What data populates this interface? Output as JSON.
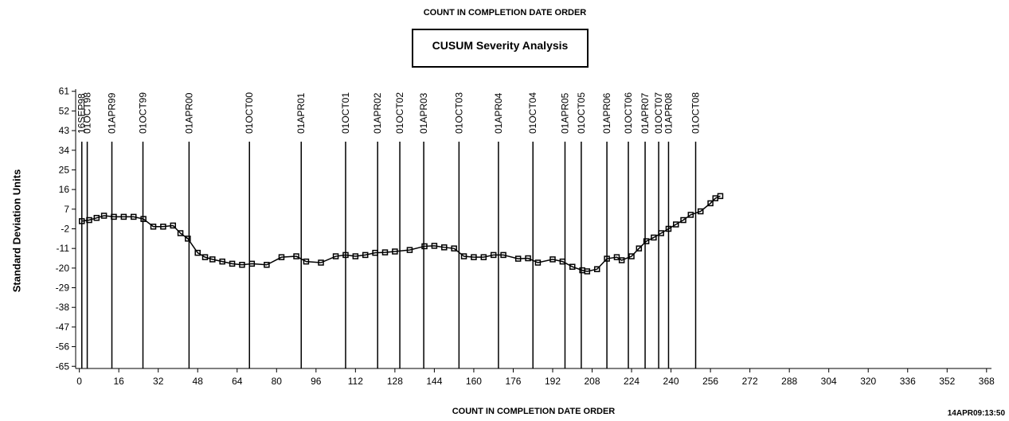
{
  "chart_data": {
    "type": "line",
    "title": "COUNT IN COMPLETION DATE ORDER",
    "subtitle": "CUSUM Severity Analysis",
    "x_label": "COUNT IN COMPLETION DATE ORDER",
    "y_label": "Standard Deviation Units",
    "footnote": "14APR09:13:50",
    "xlim": [
      -1.5,
      370
    ],
    "ylim": [
      -66,
      62
    ],
    "xticks": [
      0,
      16,
      32,
      48,
      64,
      80,
      96,
      112,
      128,
      144,
      160,
      176,
      192,
      208,
      224,
      240,
      256,
      272,
      288,
      304,
      320,
      336,
      352,
      368
    ],
    "yticks": [
      61,
      52,
      43,
      34,
      25,
      16,
      7,
      -2,
      -11,
      -20,
      -29,
      -38,
      -47,
      -56,
      -65
    ],
    "reference_lines": [
      {
        "x": 1,
        "label": "16SEP98"
      },
      {
        "x": 3.2,
        "label": "01OCT98"
      },
      {
        "x": 13.2,
        "label": "01APR99"
      },
      {
        "x": 25.8,
        "label": "01OCT99"
      },
      {
        "x": 44.5,
        "label": "01APR00"
      },
      {
        "x": 69,
        "label": "01OCT00"
      },
      {
        "x": 90,
        "label": "01APR01"
      },
      {
        "x": 108,
        "label": "01OCT01"
      },
      {
        "x": 121,
        "label": "01APR02"
      },
      {
        "x": 130,
        "label": "01OCT02"
      },
      {
        "x": 139.7,
        "label": "01APR03"
      },
      {
        "x": 154,
        "label": "01OCT03"
      },
      {
        "x": 170,
        "label": "01APR04"
      },
      {
        "x": 184,
        "label": "01OCT04"
      },
      {
        "x": 197,
        "label": "01APR05"
      },
      {
        "x": 203.6,
        "label": "01OCT05"
      },
      {
        "x": 214,
        "label": "01APR06"
      },
      {
        "x": 222.7,
        "label": "01OCT06"
      },
      {
        "x": 229.5,
        "label": "01APR07"
      },
      {
        "x": 235,
        "label": "01OCT07"
      },
      {
        "x": 239,
        "label": "01APR08"
      },
      {
        "x": 250,
        "label": "01OCT08"
      }
    ],
    "x": [
      1,
      4,
      7,
      10,
      14,
      18,
      22,
      26,
      30,
      34,
      38,
      41,
      44,
      48,
      51,
      54,
      58,
      62,
      66,
      70,
      76,
      82,
      88,
      92,
      98,
      104,
      108,
      112,
      116,
      120,
      124,
      128,
      134,
      140,
      144,
      148,
      152,
      156,
      160,
      164,
      168,
      172,
      178,
      182,
      186,
      192,
      196,
      200,
      204,
      206,
      210,
      214,
      218,
      220,
      224,
      227,
      230,
      233,
      236,
      239,
      242,
      245,
      248,
      252,
      256,
      258,
      260
    ],
    "series": [
      {
        "name": "CUSUM",
        "color": "#000000",
        "values": [
          1.5,
          2,
          3,
          4,
          3.5,
          3.5,
          3.5,
          2.5,
          -1,
          -1,
          -0.5,
          -4,
          -6.5,
          -13,
          -15,
          -16,
          -17,
          -18,
          -18.5,
          -18,
          -18.5,
          -15,
          -14.6,
          -17,
          -17.5,
          -14.6,
          -14,
          -14.6,
          -14,
          -13,
          -12.8,
          -12.4,
          -11.7,
          -10,
          -9.8,
          -10.5,
          -11,
          -14.6,
          -15,
          -15,
          -14,
          -14,
          -15.7,
          -15.5,
          -17.5,
          -16,
          -17,
          -19.4,
          -21,
          -21.5,
          -20.5,
          -15.7,
          -15,
          -16.4,
          -14.6,
          -11,
          -7.7,
          -6,
          -4,
          -2,
          0,
          2,
          4.4,
          6,
          9.7,
          12,
          13
        ]
      }
    ]
  }
}
